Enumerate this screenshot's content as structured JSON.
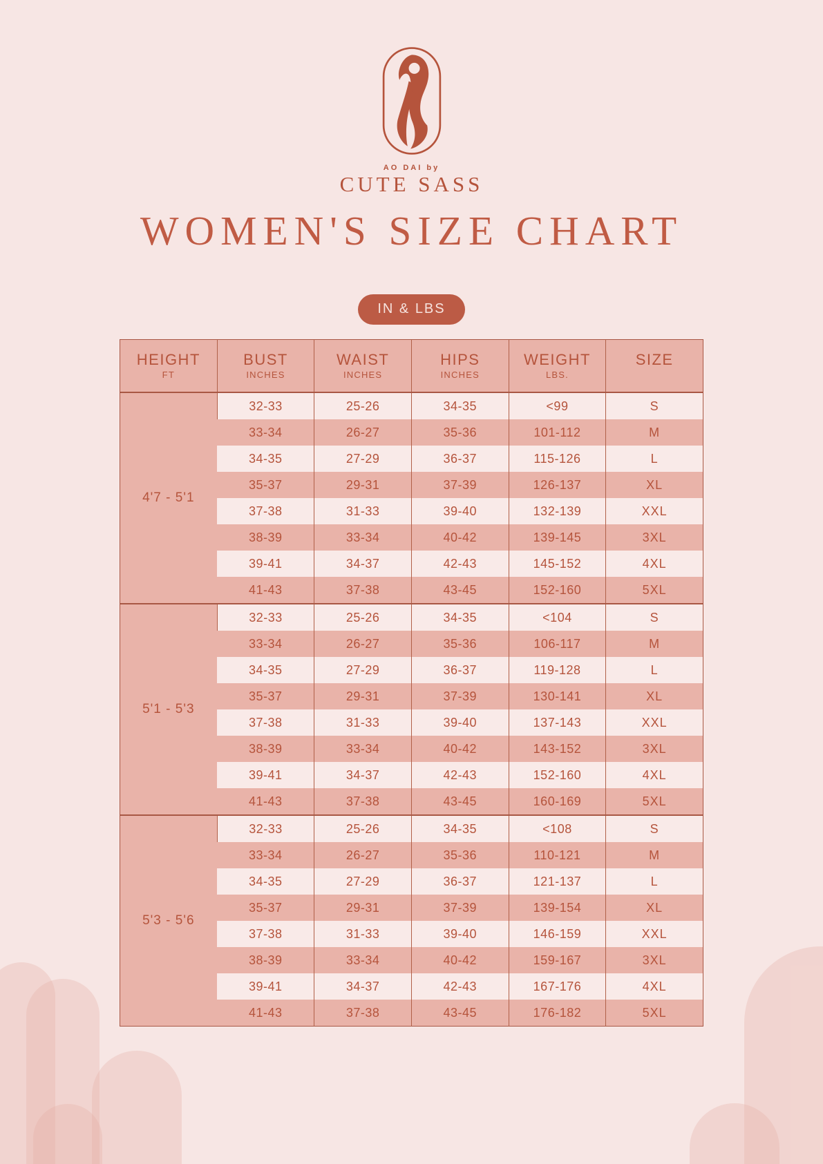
{
  "brand": {
    "tagline": "AO DAI by",
    "name": "CUTE SASS",
    "logo_icon": "woman-in-ao-dai"
  },
  "title": "WOMEN'S SIZE CHART",
  "units_badge": "IN & LBS",
  "colors": {
    "page_bg": "#F7E6E4",
    "accent": "#B5543C",
    "title_color": "#C05B44",
    "badge_bg": "#BC5B45",
    "badge_text": "#F6E3DE",
    "table_salmon": "#E9B3A9",
    "row_light": "#F9EAE8",
    "line_strong": "#A85744",
    "line_soft": "#B06048",
    "cell_text": "#B5543C",
    "arch": "rgba(230,173,163,0.30)"
  },
  "size_table": {
    "columns": [
      {
        "label": "HEIGHT",
        "sub": "FT"
      },
      {
        "label": "BUST",
        "sub": "INCHES"
      },
      {
        "label": "WAIST",
        "sub": "INCHES"
      },
      {
        "label": "HIPS",
        "sub": "INCHES"
      },
      {
        "label": "WEIGHT",
        "sub": "LBS."
      },
      {
        "label": "SIZE",
        "sub": ""
      }
    ],
    "sections": [
      {
        "height": "4'7 - 5'1",
        "rows": [
          [
            "32-33",
            "25-26",
            "34-35",
            "<99",
            "S"
          ],
          [
            "33-34",
            "26-27",
            "35-36",
            "101-112",
            "M"
          ],
          [
            "34-35",
            "27-29",
            "36-37",
            "115-126",
            "L"
          ],
          [
            "35-37",
            "29-31",
            "37-39",
            "126-137",
            "XL"
          ],
          [
            "37-38",
            "31-33",
            "39-40",
            "132-139",
            "XXL"
          ],
          [
            "38-39",
            "33-34",
            "40-42",
            "139-145",
            "3XL"
          ],
          [
            "39-41",
            "34-37",
            "42-43",
            "145-152",
            "4XL"
          ],
          [
            "41-43",
            "37-38",
            "43-45",
            "152-160",
            "5XL"
          ]
        ]
      },
      {
        "height": "5'1 - 5'3",
        "rows": [
          [
            "32-33",
            "25-26",
            "34-35",
            "<104",
            "S"
          ],
          [
            "33-34",
            "26-27",
            "35-36",
            "106-117",
            "M"
          ],
          [
            "34-35",
            "27-29",
            "36-37",
            "119-128",
            "L"
          ],
          [
            "35-37",
            "29-31",
            "37-39",
            "130-141",
            "XL"
          ],
          [
            "37-38",
            "31-33",
            "39-40",
            "137-143",
            "XXL"
          ],
          [
            "38-39",
            "33-34",
            "40-42",
            "143-152",
            "3XL"
          ],
          [
            "39-41",
            "34-37",
            "42-43",
            "152-160",
            "4XL"
          ],
          [
            "41-43",
            "37-38",
            "43-45",
            "160-169",
            "5XL"
          ]
        ]
      },
      {
        "height": "5'3 - 5'6",
        "rows": [
          [
            "32-33",
            "25-26",
            "34-35",
            "<108",
            "S"
          ],
          [
            "33-34",
            "26-27",
            "35-36",
            "110-121",
            "M"
          ],
          [
            "34-35",
            "27-29",
            "36-37",
            "121-137",
            "L"
          ],
          [
            "35-37",
            "29-31",
            "37-39",
            "139-154",
            "XL"
          ],
          [
            "37-38",
            "31-33",
            "39-40",
            "146-159",
            "XXL"
          ],
          [
            "38-39",
            "33-34",
            "40-42",
            "159-167",
            "3XL"
          ],
          [
            "39-41",
            "34-37",
            "42-43",
            "167-176",
            "4XL"
          ],
          [
            "41-43",
            "37-38",
            "43-45",
            "176-182",
            "5XL"
          ]
        ]
      }
    ]
  }
}
